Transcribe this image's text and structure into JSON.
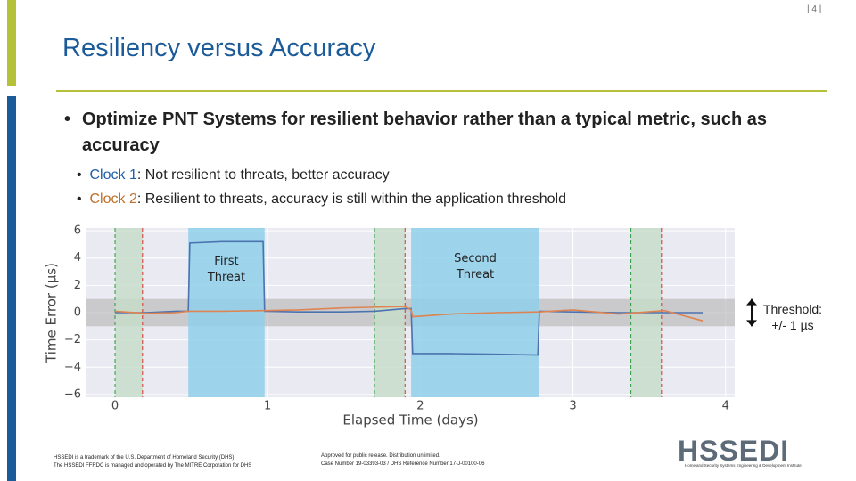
{
  "page_number": "| 4 |",
  "title": "Resiliency versus Accuracy",
  "bullet": "Optimize PNT Systems for resilient behavior rather than a typical metric, such as accuracy",
  "sub_bullets": [
    {
      "label": "Clock 1",
      "text": ": Not resilient to threats, better accuracy"
    },
    {
      "label": "Clock 2",
      "text": ": Resilient to threats, accuracy is still within the application threshold"
    }
  ],
  "chart_data": {
    "type": "line",
    "xlabel": "Elapsed Time (days)",
    "ylabel": "Time Error (μs)",
    "xlim": [
      -0.187,
      4.06
    ],
    "ylim": [
      -6.2,
      6.2
    ],
    "xticks": [
      0,
      1,
      2,
      3,
      4
    ],
    "yticks": [
      {
        "value": -6,
        "label": "−6"
      },
      {
        "value": -4,
        "label": "−4"
      },
      {
        "value": -2,
        "label": "−2"
      },
      0,
      2,
      4,
      6
    ],
    "grid": true,
    "x": [
      0,
      0.2,
      0.4,
      0.48,
      0.49,
      0.7,
      0.97,
      0.98,
      1.2,
      1.5,
      1.7,
      1.9,
      1.94,
      1.95,
      2.2,
      2.5,
      2.77,
      2.78,
      3.0,
      3.3,
      3.6,
      3.85
    ],
    "series": [
      {
        "name": "Clock 1",
        "color": "#4c72b0",
        "values": [
          0,
          0,
          0.1,
          0.1,
          5.1,
          5.2,
          5.2,
          0.1,
          0.05,
          0.05,
          0.1,
          0.3,
          0.3,
          -3.0,
          -3.0,
          -3.05,
          -3.1,
          0.1,
          0.05,
          0,
          0,
          0
        ]
      },
      {
        "name": "Clock 2",
        "color": "#dd8452",
        "values": [
          0.1,
          -0.05,
          0,
          0.1,
          0.1,
          0.1,
          0.15,
          0.15,
          0.2,
          0.35,
          0.4,
          0.45,
          0.2,
          -0.3,
          -0.1,
          0,
          0.05,
          0.05,
          0.2,
          -0.1,
          0.15,
          -0.6
        ]
      }
    ],
    "threat_windows": [
      [
        0.48,
        0.98
      ],
      [
        1.94,
        2.78
      ]
    ],
    "threat_color": "#8fd0ea",
    "recovery_windows": [
      [
        0.0,
        0.18
      ],
      [
        1.7,
        1.9
      ],
      [
        3.38,
        3.58
      ]
    ],
    "recovery_color": "#c5dcc8",
    "threshold_band": [
      -1,
      1
    ],
    "annotations": [
      {
        "text": "First Threat",
        "x": 0.73,
        "y": 3.2
      },
      {
        "text": "Second Threat",
        "x": 2.36,
        "y": 3.4
      }
    ],
    "threshold_label": "Threshold: +/- 1 µs"
  },
  "footer_left": [
    "HSSEDI is a trademark of the U.S. Department of Homeland Security (DHS)",
    "The HSSEDI FFRDC is managed and operated by The MITRE Corporation for DHS"
  ],
  "footer_mid": [
    "Approved for public release. Distribution unlimited.",
    "Case Number 19-03393-03 / DHS Reference Number 17-J-00100-06"
  ],
  "logo": "HSSEDI",
  "logo_tagline": "Homeland Security Systems Engineering & Development Institute"
}
